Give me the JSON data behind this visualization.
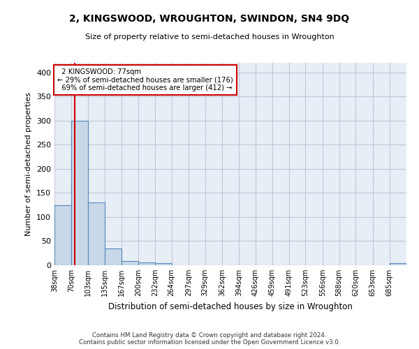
{
  "title": "2, KINGSWOOD, WROUGHTON, SWINDON, SN4 9DQ",
  "subtitle": "Size of property relative to semi-detached houses in Wroughton",
  "xlabel": "Distribution of semi-detached houses by size in Wroughton",
  "ylabel": "Number of semi-detached properties",
  "bin_labels": [
    "38sqm",
    "70sqm",
    "103sqm",
    "135sqm",
    "167sqm",
    "200sqm",
    "232sqm",
    "264sqm",
    "297sqm",
    "329sqm",
    "362sqm",
    "394sqm",
    "426sqm",
    "459sqm",
    "491sqm",
    "523sqm",
    "556sqm",
    "588sqm",
    "620sqm",
    "653sqm",
    "685sqm"
  ],
  "bin_edges": [
    38,
    70,
    103,
    135,
    167,
    200,
    232,
    264,
    297,
    329,
    362,
    394,
    426,
    459,
    491,
    523,
    556,
    588,
    620,
    653,
    685,
    718
  ],
  "values": [
    125,
    300,
    130,
    35,
    9,
    6,
    4,
    0,
    0,
    0,
    0,
    0,
    0,
    0,
    0,
    0,
    0,
    0,
    0,
    0,
    4
  ],
  "bar_color": "#c8d8e8",
  "bar_edge_color": "#5588bb",
  "property_size": 77,
  "property_name": "2 KINGSWOOD",
  "pct_smaller": 29,
  "pct_larger": 69,
  "n_smaller": 176,
  "n_larger": 412,
  "vline_color": "#cc0000",
  "annotation_box_color": "#cc0000",
  "ylim": [
    0,
    420
  ],
  "yticks": [
    0,
    50,
    100,
    150,
    200,
    250,
    300,
    350,
    400
  ],
  "background_color": "#ffffff",
  "grid_color": "#c0c8d8",
  "footer_line1": "Contains HM Land Registry data © Crown copyright and database right 2024.",
  "footer_line2": "Contains public sector information licensed under the Open Government Licence v3.0."
}
